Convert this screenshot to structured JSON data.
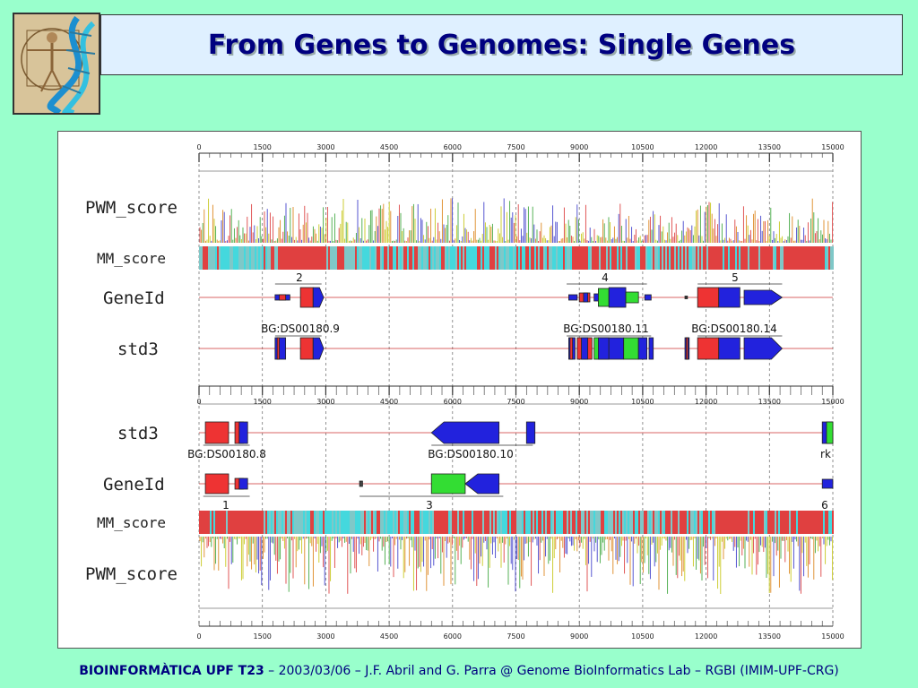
{
  "slide": {
    "title": "From Genes to Genomes: Single Genes"
  },
  "footer": {
    "course": "BIOINFORMÀTICA UPF T23",
    "rest": " – 2003/03/06 – J.F. Abril and G. Parra @ Genome BioInformatics Lab – RGBI (IMIM-UPF-CRG)"
  },
  "figure": {
    "axis": {
      "ticks": [
        "0",
        "1500",
        "3000",
        "4500",
        "6000",
        "7500",
        "9000",
        "10500",
        "12000",
        "13500",
        "15000"
      ],
      "min": 0,
      "max": 15000
    },
    "forward": {
      "tracks": [
        "PWM_score",
        "MM_score",
        "GeneId",
        "std3"
      ],
      "geneid_labels": [
        "2",
        "4",
        "5"
      ],
      "std3_labels": [
        "BG:DS00180.9",
        "BG:DS00180.11",
        "BG:DS00180.14"
      ]
    },
    "reverse": {
      "tracks": [
        "std3",
        "GeneId",
        "MM_score",
        "PWM_score"
      ],
      "std3_labels": [
        "BG:DS00180.8",
        "BG:DS00180.10",
        "rk"
      ],
      "geneid_labels": [
        "1",
        "3",
        "6"
      ]
    },
    "colors": {
      "exon_red": "#ee3333",
      "exon_blue": "#2222dd",
      "exon_green": "#33dd33",
      "mm_cyan": "#44d8dd",
      "mm_red": "#e04040",
      "line": "#cc3333"
    }
  }
}
